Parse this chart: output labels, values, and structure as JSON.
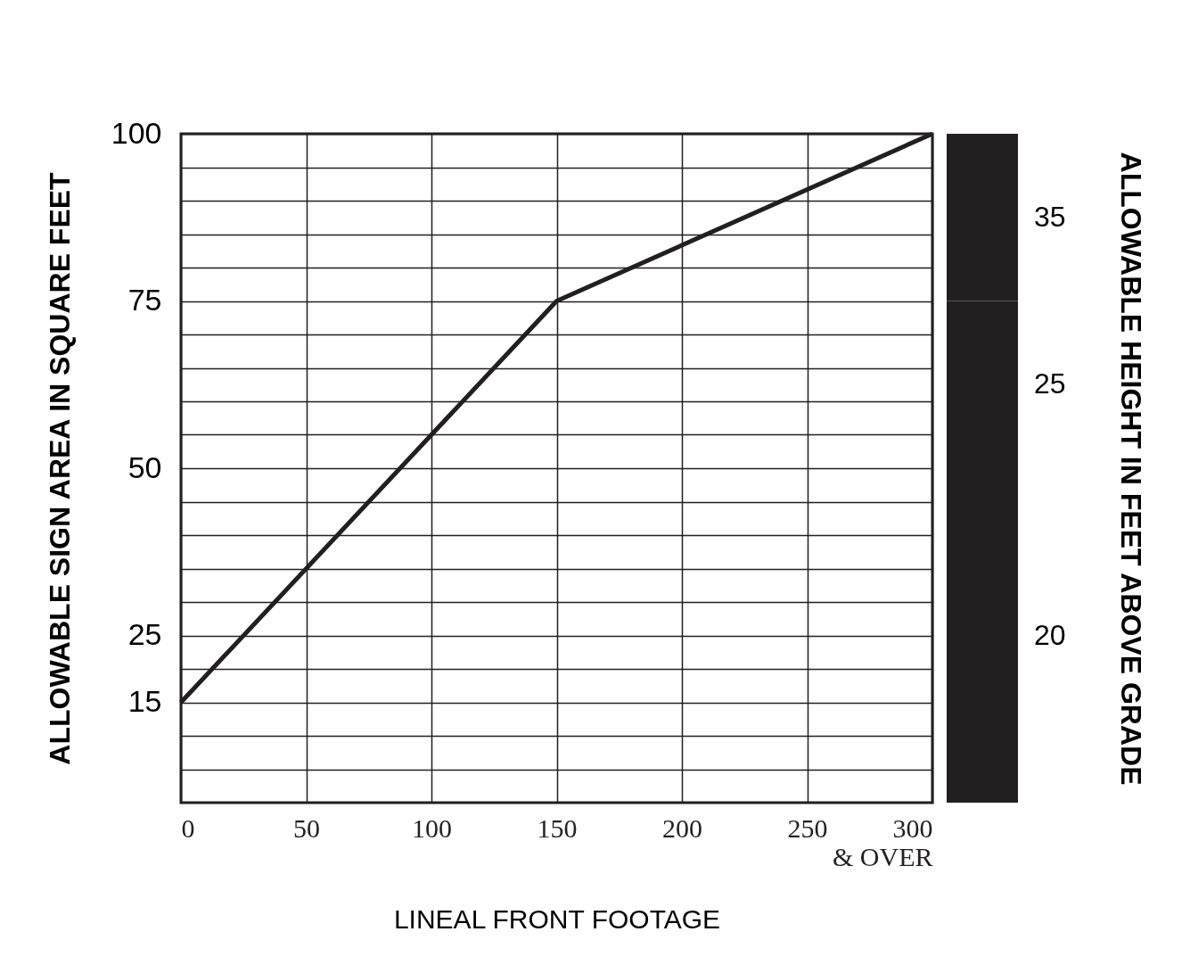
{
  "chart_data": [
    {
      "type": "line",
      "xlabel": "LINEAL FRONT FOOTAGE",
      "ylabel": "ALLOWABLE SIGN AREA IN SQUARE FEET",
      "x": [
        0,
        150,
        300
      ],
      "series": [
        {
          "color": "#231f20",
          "values": [
            15,
            75,
            100
          ]
        }
      ],
      "xlim": [
        0,
        300
      ],
      "xticks": [
        0,
        50,
        100,
        150,
        200,
        250,
        {
          "value": 300,
          "label": "300\n& OVER"
        }
      ],
      "ylim": [
        0,
        100
      ],
      "yticks": [
        {
          "value": 5,
          "label": null
        },
        {
          "value": 10,
          "label": null
        },
        15,
        {
          "value": 20,
          "label": null
        },
        25,
        {
          "value": 30,
          "label": null
        },
        {
          "value": 35,
          "label": null
        },
        {
          "value": 40,
          "label": null
        },
        {
          "value": 45,
          "label": null
        },
        50,
        {
          "value": 55,
          "label": null
        },
        {
          "value": 60,
          "label": null
        },
        {
          "value": 65,
          "label": null
        },
        {
          "value": 70,
          "label": null
        },
        75,
        {
          "value": 80,
          "label": null
        },
        {
          "value": 85,
          "label": null
        },
        {
          "value": 90,
          "label": null
        },
        {
          "value": 95,
          "label": null
        },
        100
      ],
      "grid": true,
      "legend": false,
      "marker": "none",
      "line_style": "solid"
    },
    {
      "type": "bar",
      "stacked": true,
      "ylabel": "ALLOWABLE HEIGHT IN FEET ABOVE GRADE",
      "categories": [
        null
      ],
      "series": [
        {
          "name": "20",
          "color": "#231f20",
          "values": [
            50
          ]
        },
        {
          "name": "25",
          "color": "#231f20",
          "values": [
            25
          ]
        },
        {
          "name": "35",
          "color": "#231f20",
          "values": [
            25
          ]
        }
      ],
      "ylim": [
        0,
        100
      ]
    }
  ]
}
